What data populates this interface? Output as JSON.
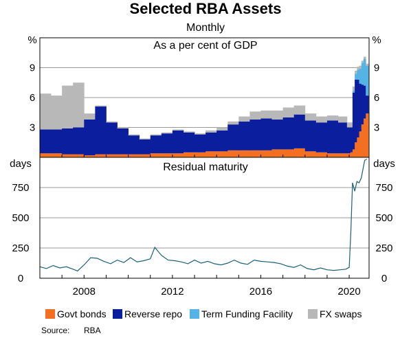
{
  "chart_data": [
    {
      "type": "bar",
      "stacked": true,
      "title": "Selected RBA Assets",
      "subtitle": "Monthly",
      "panel_title": "As a per cent of GDP",
      "unit_label": "%",
      "ylim": [
        0,
        12
      ],
      "yticks": [
        3,
        6,
        9
      ],
      "xlim": [
        2006.0,
        2020.9
      ],
      "xticks": [
        2008,
        2012,
        2016,
        2020
      ],
      "grid": true,
      "x": [
        2006.0,
        2006.5,
        2007.0,
        2007.5,
        2008.0,
        2008.5,
        2009.0,
        2009.5,
        2010.0,
        2010.5,
        2011.0,
        2011.5,
        2012.0,
        2012.5,
        2013.0,
        2013.5,
        2014.0,
        2014.5,
        2015.0,
        2015.5,
        2016.0,
        2016.5,
        2017.0,
        2017.5,
        2018.0,
        2018.5,
        2019.0,
        2019.5,
        2019.9,
        2020.05,
        2020.15,
        2020.25,
        2020.35,
        2020.45,
        2020.55,
        2020.65,
        2020.75
      ],
      "series": [
        {
          "name": "Govt bonds",
          "color": "#f36f21",
          "values": [
            0.4,
            0.4,
            0.3,
            0.3,
            0.2,
            0.3,
            0.3,
            0.3,
            0.3,
            0.3,
            0.4,
            0.4,
            0.4,
            0.5,
            0.5,
            0.6,
            0.6,
            0.7,
            0.7,
            0.7,
            0.7,
            0.8,
            0.8,
            0.9,
            0.6,
            0.5,
            0.4,
            0.4,
            0.4,
            0.5,
            0.8,
            1.5,
            2.0,
            2.6,
            3.3,
            3.9,
            4.4
          ]
        },
        {
          "name": "Reverse repo",
          "color": "#0b1f9e",
          "values": [
            2.4,
            2.4,
            2.6,
            2.7,
            3.6,
            4.8,
            3.2,
            2.6,
            1.9,
            1.5,
            1.8,
            2.0,
            2.3,
            2.0,
            1.8,
            1.9,
            2.1,
            2.6,
            2.9,
            3.1,
            3.2,
            3.0,
            3.2,
            3.4,
            3.1,
            3.0,
            3.3,
            3.1,
            2.6,
            2.5,
            5.7,
            6.3,
            5.8,
            4.8,
            4.0,
            3.3,
            1.8
          ]
        },
        {
          "name": "Term Funding Facility",
          "color": "#55b4e5",
          "values": [
            0,
            0,
            0,
            0,
            0,
            0,
            0,
            0,
            0,
            0,
            0,
            0,
            0,
            0,
            0,
            0,
            0,
            0,
            0,
            0,
            0,
            0,
            0,
            0,
            0,
            0,
            0,
            0,
            0,
            0,
            0.2,
            0.6,
            1.0,
            1.5,
            2.2,
            2.7,
            3.0
          ]
        },
        {
          "name": "FX swaps",
          "color": "#b8b8b8",
          "values": [
            3.6,
            3.4,
            4.3,
            4.5,
            0.6,
            0.1,
            0.1,
            0.1,
            0.1,
            0.1,
            0.1,
            0.1,
            0.1,
            0.1,
            0.1,
            0.2,
            0.3,
            0.3,
            0.5,
            0.8,
            0.8,
            0.9,
            1.0,
            0.9,
            0.7,
            0.6,
            0.5,
            0.6,
            0.5,
            0.5,
            0.4,
            0.3,
            0.3,
            0.3,
            0.2,
            0.2,
            0.2
          ]
        }
      ]
    },
    {
      "type": "line",
      "panel_title": "Residual maturity",
      "unit_label": "days",
      "ylim": [
        0,
        1000
      ],
      "yticks": [
        0,
        250,
        500,
        750
      ],
      "xlim": [
        2006.0,
        2020.9
      ],
      "xticks": [
        2008,
        2012,
        2016,
        2020
      ],
      "grid": true,
      "series": [
        {
          "name": "Residual maturity",
          "color": "#1a5f73",
          "x": [
            2006.0,
            2006.3,
            2006.6,
            2006.9,
            2007.2,
            2007.5,
            2007.7,
            2008.0,
            2008.3,
            2008.6,
            2008.9,
            2009.2,
            2009.5,
            2009.8,
            2010.1,
            2010.4,
            2010.7,
            2011.0,
            2011.2,
            2011.5,
            2011.8,
            2012.1,
            2012.4,
            2012.7,
            2013.0,
            2013.3,
            2013.6,
            2013.9,
            2014.2,
            2014.5,
            2014.8,
            2015.1,
            2015.4,
            2015.7,
            2016.0,
            2016.3,
            2016.6,
            2016.9,
            2017.2,
            2017.5,
            2017.8,
            2018.1,
            2018.4,
            2018.7,
            2019.0,
            2019.3,
            2019.6,
            2019.85,
            2020.0,
            2020.08,
            2020.15,
            2020.25,
            2020.35,
            2020.45,
            2020.55,
            2020.7,
            2020.8
          ],
          "values": [
            95,
            80,
            105,
            85,
            95,
            75,
            60,
            110,
            170,
            165,
            140,
            120,
            150,
            130,
            170,
            135,
            145,
            160,
            255,
            190,
            150,
            145,
            135,
            120,
            150,
            125,
            140,
            120,
            110,
            125,
            150,
            125,
            115,
            150,
            140,
            135,
            130,
            120,
            100,
            90,
            110,
            80,
            70,
            85,
            70,
            65,
            70,
            75,
            90,
            400,
            790,
            720,
            800,
            790,
            830,
            975,
            985
          ]
        }
      ]
    }
  ],
  "legend": [
    {
      "label": "Govt bonds",
      "color": "#f36f21"
    },
    {
      "label": "Reverse repo",
      "color": "#0b1f9e"
    },
    {
      "label": "Term Funding Facility",
      "color": "#55b4e5"
    },
    {
      "label": "FX swaps",
      "color": "#b8b8b8"
    }
  ],
  "source": {
    "label": "Source:",
    "value": "RBA"
  }
}
